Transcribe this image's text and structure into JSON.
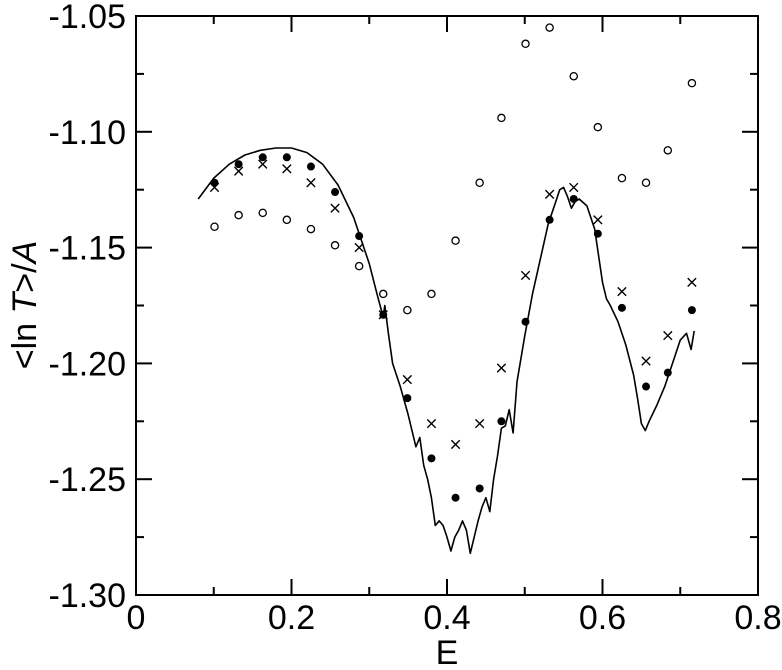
{
  "chart_data": {
    "type": "scatter",
    "xlabel": "E",
    "ylabel": {
      "prefix": "<ln ",
      "italic1": "T",
      "middle": ">/",
      "italic2": "A"
    },
    "xlim": [
      0,
      0.8
    ],
    "ylim": [
      -1.3,
      -1.05
    ],
    "grid": false,
    "x_ticks": [
      0,
      0.2,
      0.4,
      0.6,
      0.8
    ],
    "x_tick_labels": [
      "0",
      "0.2",
      "0.4",
      "0.6",
      "0.8"
    ],
    "y_ticks": [
      -1.3,
      -1.25,
      -1.2,
      -1.15,
      -1.1,
      -1.05
    ],
    "y_tick_labels": [
      "-1.30",
      "-1.25",
      "-1.20",
      "-1.15",
      "-1.10",
      "-1.05"
    ],
    "series": [
      {
        "marker": "line",
        "points": [
          [
            0.08,
            -1.129
          ],
          [
            0.1,
            -1.12
          ],
          [
            0.12,
            -1.114
          ],
          [
            0.14,
            -1.11
          ],
          [
            0.16,
            -1.108
          ],
          [
            0.18,
            -1.107
          ],
          [
            0.2,
            -1.107
          ],
          [
            0.22,
            -1.109
          ],
          [
            0.24,
            -1.114
          ],
          [
            0.26,
            -1.123
          ],
          [
            0.28,
            -1.137
          ],
          [
            0.3,
            -1.157
          ],
          [
            0.31,
            -1.17
          ],
          [
            0.318,
            -1.18
          ],
          [
            0.32,
            -1.175
          ],
          [
            0.325,
            -1.188
          ],
          [
            0.33,
            -1.2
          ],
          [
            0.34,
            -1.21
          ],
          [
            0.35,
            -1.222
          ],
          [
            0.36,
            -1.236
          ],
          [
            0.365,
            -1.232
          ],
          [
            0.37,
            -1.244
          ],
          [
            0.375,
            -1.25
          ],
          [
            0.38,
            -1.258
          ],
          [
            0.385,
            -1.27
          ],
          [
            0.39,
            -1.268
          ],
          [
            0.395,
            -1.27
          ],
          [
            0.4,
            -1.275
          ],
          [
            0.405,
            -1.281
          ],
          [
            0.41,
            -1.275
          ],
          [
            0.415,
            -1.272
          ],
          [
            0.42,
            -1.268
          ],
          [
            0.425,
            -1.272
          ],
          [
            0.43,
            -1.282
          ],
          [
            0.435,
            -1.275
          ],
          [
            0.44,
            -1.268
          ],
          [
            0.445,
            -1.262
          ],
          [
            0.45,
            -1.258
          ],
          [
            0.455,
            -1.264
          ],
          [
            0.46,
            -1.25
          ],
          [
            0.465,
            -1.24
          ],
          [
            0.47,
            -1.228
          ],
          [
            0.475,
            -1.227
          ],
          [
            0.48,
            -1.22
          ],
          [
            0.485,
            -1.23
          ],
          [
            0.49,
            -1.208
          ],
          [
            0.5,
            -1.188
          ],
          [
            0.51,
            -1.17
          ],
          [
            0.52,
            -1.155
          ],
          [
            0.53,
            -1.14
          ],
          [
            0.54,
            -1.13
          ],
          [
            0.545,
            -1.125
          ],
          [
            0.55,
            -1.124
          ],
          [
            0.555,
            -1.128
          ],
          [
            0.56,
            -1.133
          ],
          [
            0.565,
            -1.13
          ],
          [
            0.57,
            -1.129
          ],
          [
            0.58,
            -1.132
          ],
          [
            0.59,
            -1.142
          ],
          [
            0.6,
            -1.165
          ],
          [
            0.605,
            -1.172
          ],
          [
            0.61,
            -1.175
          ],
          [
            0.62,
            -1.182
          ],
          [
            0.63,
            -1.192
          ],
          [
            0.64,
            -1.205
          ],
          [
            0.645,
            -1.215
          ],
          [
            0.65,
            -1.226
          ],
          [
            0.655,
            -1.229
          ],
          [
            0.66,
            -1.225
          ],
          [
            0.67,
            -1.218
          ],
          [
            0.68,
            -1.21
          ],
          [
            0.69,
            -1.2
          ],
          [
            0.7,
            -1.19
          ],
          [
            0.708,
            -1.187
          ],
          [
            0.714,
            -1.194
          ],
          [
            0.718,
            -1.186
          ]
        ]
      },
      {
        "marker": "filled-circle",
        "points": [
          [
            0.101,
            -1.122
          ],
          [
            0.132,
            -1.114
          ],
          [
            0.163,
            -1.111
          ],
          [
            0.194,
            -1.111
          ],
          [
            0.225,
            -1.115
          ],
          [
            0.256,
            -1.126
          ],
          [
            0.287,
            -1.145
          ],
          [
            0.318,
            -1.179
          ],
          [
            0.349,
            -1.215
          ],
          [
            0.38,
            -1.241
          ],
          [
            0.411,
            -1.258
          ],
          [
            0.442,
            -1.254
          ],
          [
            0.47,
            -1.225
          ],
          [
            0.501,
            -1.182
          ],
          [
            0.532,
            -1.138
          ],
          [
            0.563,
            -1.129
          ],
          [
            0.594,
            -1.144
          ],
          [
            0.625,
            -1.176
          ],
          [
            0.656,
            -1.21
          ],
          [
            0.684,
            -1.204
          ],
          [
            0.715,
            -1.177
          ]
        ]
      },
      {
        "marker": "cross",
        "points": [
          [
            0.101,
            -1.124
          ],
          [
            0.132,
            -1.117
          ],
          [
            0.163,
            -1.114
          ],
          [
            0.194,
            -1.116
          ],
          [
            0.225,
            -1.122
          ],
          [
            0.256,
            -1.133
          ],
          [
            0.287,
            -1.15
          ],
          [
            0.318,
            -1.179
          ],
          [
            0.349,
            -1.207
          ],
          [
            0.38,
            -1.226
          ],
          [
            0.411,
            -1.235
          ],
          [
            0.442,
            -1.226
          ],
          [
            0.47,
            -1.202
          ],
          [
            0.501,
            -1.162
          ],
          [
            0.532,
            -1.127
          ],
          [
            0.563,
            -1.124
          ],
          [
            0.594,
            -1.138
          ],
          [
            0.625,
            -1.169
          ],
          [
            0.656,
            -1.199
          ],
          [
            0.684,
            -1.188
          ],
          [
            0.715,
            -1.165
          ]
        ]
      },
      {
        "marker": "open-circle",
        "points": [
          [
            0.101,
            -1.141
          ],
          [
            0.132,
            -1.136
          ],
          [
            0.163,
            -1.135
          ],
          [
            0.194,
            -1.138
          ],
          [
            0.225,
            -1.142
          ],
          [
            0.256,
            -1.149
          ],
          [
            0.287,
            -1.158
          ],
          [
            0.318,
            -1.17
          ],
          [
            0.349,
            -1.177
          ],
          [
            0.38,
            -1.17
          ],
          [
            0.411,
            -1.147
          ],
          [
            0.442,
            -1.122
          ],
          [
            0.47,
            -1.094
          ],
          [
            0.501,
            -1.062
          ],
          [
            0.532,
            -1.055
          ],
          [
            0.563,
            -1.076
          ],
          [
            0.594,
            -1.098
          ],
          [
            0.625,
            -1.12
          ],
          [
            0.656,
            -1.122
          ],
          [
            0.684,
            -1.108
          ],
          [
            0.715,
            -1.079
          ]
        ]
      }
    ]
  }
}
